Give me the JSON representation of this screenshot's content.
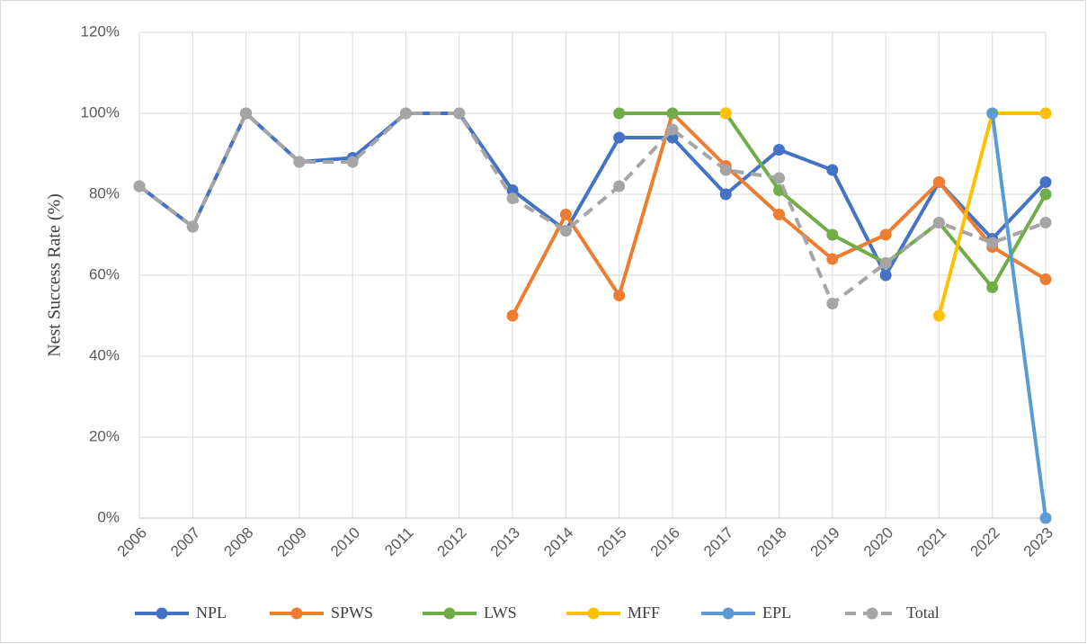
{
  "chart_data": {
    "type": "line",
    "y_label": "Nest Success Rate (%)",
    "categories": [
      "2006",
      "2007",
      "2008",
      "2009",
      "2010",
      "2011",
      "2012",
      "2013",
      "2014",
      "2015",
      "2016",
      "2017",
      "2018",
      "2019",
      "2020",
      "2021",
      "2022",
      "2023"
    ],
    "ylim": [
      0,
      120
    ],
    "yticks": [
      {
        "value": 0,
        "label": "0%"
      },
      {
        "value": 20,
        "label": "20%"
      },
      {
        "value": 40,
        "label": "40%"
      },
      {
        "value": 60,
        "label": "60%"
      },
      {
        "value": 80,
        "label": "80%"
      },
      {
        "value": 100,
        "label": "100%"
      },
      {
        "value": 120,
        "label": "120%"
      }
    ],
    "grid": true,
    "legend": "bottom",
    "series": [
      {
        "name": "NPL",
        "color": "#4472c4",
        "values": [
          82,
          72,
          100,
          88,
          89,
          100,
          100,
          81,
          71,
          94,
          94,
          80,
          91,
          86,
          60,
          83,
          69,
          83
        ]
      },
      {
        "name": "SPWS",
        "color": "#ed7d31",
        "values": [
          null,
          null,
          null,
          null,
          null,
          null,
          null,
          50,
          75,
          55,
          100,
          87,
          75,
          64,
          70,
          83,
          67,
          59
        ]
      },
      {
        "name": "LWS",
        "color": "#70ad47",
        "values": [
          null,
          null,
          null,
          null,
          null,
          null,
          null,
          null,
          null,
          100,
          100,
          100,
          81,
          70,
          63,
          73,
          57,
          80
        ]
      },
      {
        "name": "MFF",
        "color": "#ffc000",
        "values": [
          null,
          null,
          null,
          null,
          null,
          null,
          null,
          null,
          null,
          null,
          null,
          100,
          null,
          null,
          null,
          50,
          100,
          100
        ]
      },
      {
        "name": "EPL",
        "color": "#5b9bd5",
        "values": [
          null,
          null,
          null,
          null,
          null,
          null,
          null,
          null,
          null,
          null,
          null,
          null,
          null,
          null,
          null,
          null,
          100,
          0
        ]
      },
      {
        "name": "Total",
        "color": "#a5a5a5",
        "dashed": true,
        "values": [
          82,
          72,
          100,
          88,
          88,
          100,
          100,
          79,
          71,
          82,
          96,
          86,
          84,
          53,
          63,
          73,
          68,
          73
        ]
      }
    ]
  }
}
